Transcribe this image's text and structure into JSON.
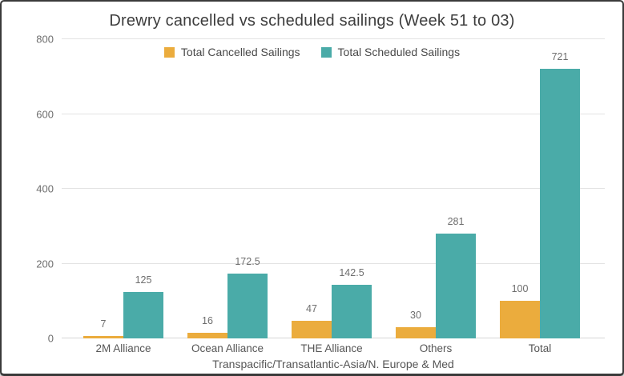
{
  "chart_data": {
    "type": "bar",
    "title": "Drewry cancelled vs scheduled sailings (Week 51 to 03)",
    "xlabel": "Transpacific/Transatlantic-Asia/N. Europe & Med",
    "ylabel": "",
    "categories": [
      "2M Alliance",
      "Ocean Alliance",
      "THE Alliance",
      "Others",
      "Total"
    ],
    "series": [
      {
        "name": "Total Cancelled Sailings",
        "key": "cancelled",
        "color": "#EBAC3D",
        "values": [
          7,
          16,
          47,
          30,
          100
        ]
      },
      {
        "name": "Total Scheduled Sailings",
        "key": "scheduled",
        "color": "#4AABA8",
        "values": [
          125,
          172.5,
          142.5,
          281,
          721
        ]
      }
    ],
    "ylim": [
      0,
      800
    ],
    "yticks": [
      0,
      200,
      400,
      600,
      800
    ],
    "grid": true,
    "legend_position": "top-center"
  },
  "style_colors": {
    "background": "#ffffff",
    "frame_border": "#3a3a3a",
    "gridline": "#e3e3e3",
    "title_text": "#3d3d3d",
    "label_text": "#6e6e6e",
    "axis_text": "#565656"
  }
}
